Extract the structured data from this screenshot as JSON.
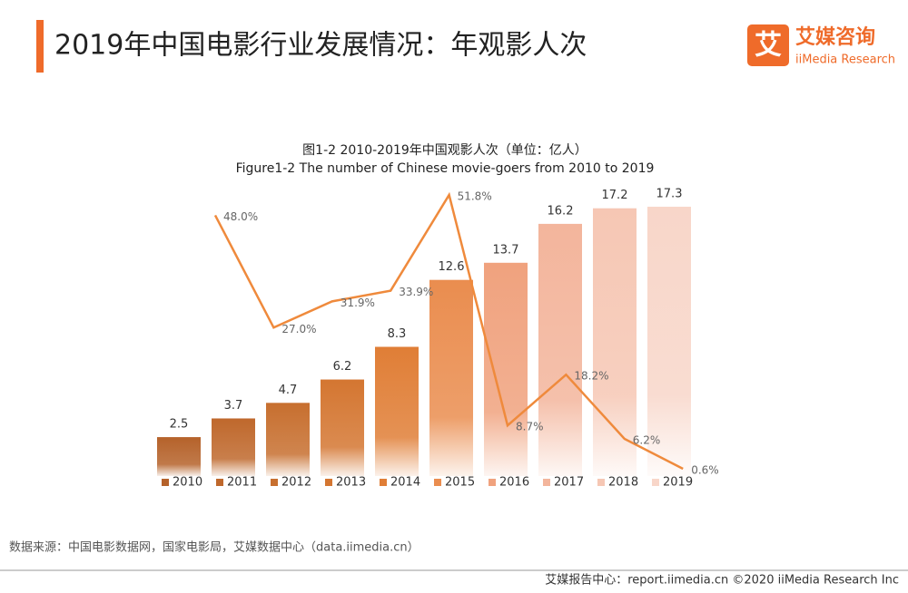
{
  "header": {
    "title": "2019年中国电影行业发展情况：年观影人次",
    "brand_cn": "艾媒咨询",
    "brand_en": "iiMedia Research",
    "brand_icon": "艾"
  },
  "chart_data": {
    "type": "bar-line",
    "title": "图1-2 2010-2019年中国观影人次（单位：亿人）",
    "subtitle": "Figure1-2 The number of Chinese movie-goers from 2010 to 2019",
    "categories": [
      "2010",
      "2011",
      "2012",
      "2013",
      "2014",
      "2015",
      "2016",
      "2017",
      "2018",
      "2019"
    ],
    "values": [
      2.5,
      3.7,
      4.7,
      6.2,
      8.3,
      12.6,
      13.7,
      16.2,
      17.2,
      17.3
    ],
    "colors": [
      "#b5622a",
      "#bf682c",
      "#c76f2f",
      "#d47631",
      "#e07e36",
      "#ea8d4f",
      "#f0a27e",
      "#f3b59c",
      "#f6c7b4",
      "#f8d6c9"
    ],
    "line": {
      "color": "#ef8a3c",
      "values": [
        null,
        48.0,
        27.0,
        31.9,
        33.9,
        51.8,
        8.7,
        18.2,
        6.2,
        0.6
      ],
      "value_labels": [
        null,
        "48.0%",
        "27.0%",
        "31.9%",
        "33.9%",
        "51.8%",
        "8.7%",
        "18.2%",
        "6.2%",
        "0.6%"
      ]
    },
    "legend": true
  },
  "source": "数据来源：中国电影数据网，国家电影局，艾媒数据中心（data.iimedia.cn）",
  "footer": "艾媒报告中心：report.iimedia.cn  ©2020  iiMedia Research  Inc"
}
